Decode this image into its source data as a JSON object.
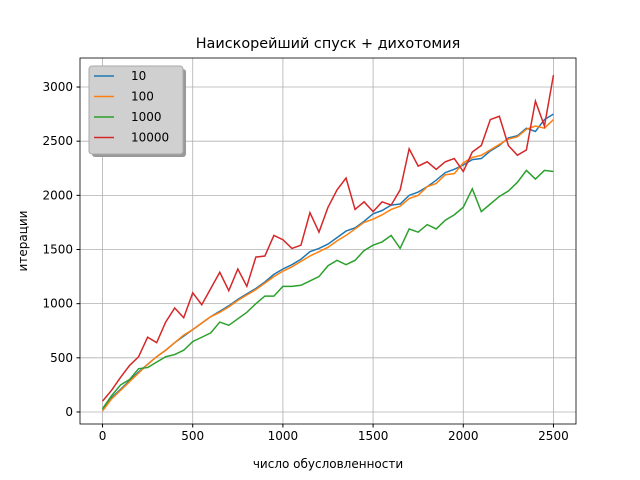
{
  "chart_data": {
    "type": "line",
    "title": "Наискорейший спуск + дихотомия",
    "x_label": "число обусловленности",
    "y_label": "итерации",
    "x": [
      0,
      50,
      100,
      150,
      200,
      250,
      300,
      350,
      400,
      450,
      500,
      550,
      600,
      650,
      700,
      750,
      800,
      850,
      900,
      950,
      1000,
      1050,
      1100,
      1150,
      1200,
      1250,
      1300,
      1350,
      1400,
      1450,
      1500,
      1550,
      1600,
      1650,
      1700,
      1750,
      1800,
      1850,
      1900,
      1950,
      2000,
      2050,
      2100,
      2150,
      2200,
      2250,
      2300,
      2350,
      2400,
      2450,
      2500
    ],
    "series": [
      {
        "name": "10",
        "color": "#1f77b4",
        "values": [
          20,
          130,
          210,
          290,
          370,
          440,
          510,
          570,
          640,
          700,
          760,
          820,
          880,
          930,
          980,
          1040,
          1090,
          1140,
          1200,
          1270,
          1320,
          1360,
          1410,
          1480,
          1510,
          1550,
          1610,
          1670,
          1700,
          1760,
          1830,
          1860,
          1910,
          1920,
          2000,
          2030,
          2080,
          2140,
          2210,
          2240,
          2280,
          2330,
          2340,
          2410,
          2460,
          2530,
          2550,
          2620,
          2590,
          2700,
          2750
        ]
      },
      {
        "name": "100",
        "color": "#ff7f0e",
        "values": [
          10,
          120,
          200,
          280,
          360,
          440,
          510,
          570,
          640,
          710,
          760,
          820,
          880,
          920,
          970,
          1030,
          1080,
          1130,
          1190,
          1250,
          1300,
          1340,
          1390,
          1440,
          1480,
          1520,
          1580,
          1630,
          1690,
          1750,
          1780,
          1820,
          1870,
          1900,
          1970,
          2000,
          2080,
          2110,
          2190,
          2200,
          2300,
          2350,
          2370,
          2420,
          2470,
          2520,
          2540,
          2610,
          2640,
          2620,
          2700
        ]
      },
      {
        "name": "1000",
        "color": "#2ca02c",
        "values": [
          30,
          150,
          250,
          300,
          400,
          410,
          460,
          510,
          530,
          570,
          650,
          690,
          730,
          830,
          800,
          860,
          920,
          1000,
          1070,
          1070,
          1160,
          1160,
          1170,
          1210,
          1250,
          1350,
          1400,
          1360,
          1400,
          1490,
          1540,
          1570,
          1630,
          1510,
          1690,
          1660,
          1730,
          1690,
          1770,
          1820,
          1890,
          2060,
          1850,
          1920,
          1990,
          2040,
          2120,
          2230,
          2150,
          2230,
          2220
        ]
      },
      {
        "name": "10000",
        "color": "#d62728",
        "values": [
          100,
          200,
          320,
          430,
          510,
          690,
          640,
          830,
          960,
          870,
          1100,
          990,
          1140,
          1290,
          1120,
          1320,
          1160,
          1430,
          1440,
          1630,
          1590,
          1510,
          1540,
          1840,
          1660,
          1890,
          2050,
          2160,
          1870,
          1940,
          1850,
          1940,
          1910,
          2050,
          2430,
          2270,
          2310,
          2240,
          2310,
          2340,
          2220,
          2400,
          2460,
          2700,
          2730,
          2460,
          2370,
          2420,
          2870,
          2640,
          3110
        ]
      }
    ],
    "xlim": [
      -125,
      2625
    ],
    "ylim": [
      -111,
      3268
    ],
    "xticks": [
      0,
      500,
      1000,
      1500,
      2000,
      2500
    ],
    "yticks": [
      0,
      500,
      1000,
      1500,
      2000,
      2500,
      3000
    ],
    "grid": true,
    "legend": "upper left"
  }
}
